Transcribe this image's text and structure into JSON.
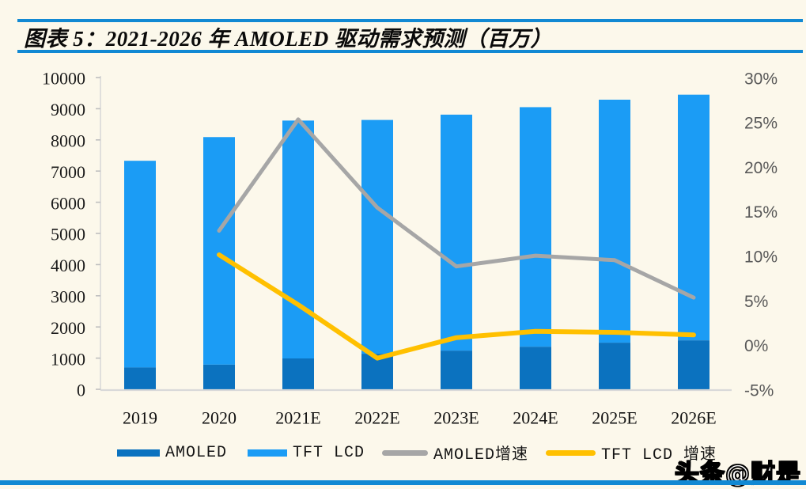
{
  "page": {
    "title": "图表 5：2021-2026 年 AMOLED 驱动需求预测（百万）",
    "watermark": "头条@财是",
    "accent_blue": "#1289D3",
    "background": "#FCF8EB"
  },
  "chart_data": {
    "type": "bar",
    "subtype": "stacked bars (left axis) + growth-rate lines (right axis)",
    "title": "图表 5：2021-2026 年 AMOLED 驱动需求预测（百万）",
    "categories": [
      "2019",
      "2020",
      "2021E",
      "2022E",
      "2023E",
      "2024E",
      "2025E",
      "2026E"
    ],
    "bar_series": [
      {
        "name": "AMOLED",
        "color": "#0B72BF",
        "axis": "left",
        "values": [
          700,
          790,
          990,
          1140,
          1240,
          1365,
          1495,
          1570
        ]
      },
      {
        "name": "TFT LCD",
        "color": "#1B9CF5",
        "axis": "left",
        "values": [
          6630,
          7300,
          7630,
          7500,
          7570,
          7685,
          7795,
          7880
        ]
      }
    ],
    "line_series": [
      {
        "name": "AMOLED增速",
        "color": "#A6A6A6",
        "axis": "right",
        "values": [
          null,
          12.8,
          25.3,
          15.4,
          8.8,
          10.0,
          9.5,
          5.3
        ]
      },
      {
        "name": "TFT LCD 增速",
        "color": "#FFC000",
        "axis": "right",
        "values": [
          null,
          10.1,
          4.5,
          -1.5,
          0.8,
          1.5,
          1.4,
          1.1
        ]
      }
    ],
    "left_axis": {
      "min": 0,
      "max": 10000,
      "tick_step": 1000,
      "ticks": [
        0,
        1000,
        2000,
        3000,
        4000,
        5000,
        6000,
        7000,
        8000,
        9000,
        10000
      ]
    },
    "right_axis": {
      "min": -5,
      "max": 30,
      "tick_step": 5,
      "ticks": [
        "-5%",
        "0%",
        "5%",
        "10%",
        "15%",
        "20%",
        "25%",
        "30%"
      ],
      "tick_values": [
        -5,
        0,
        5,
        10,
        15,
        20,
        25,
        30
      ]
    },
    "grid": false,
    "legend_position": "bottom"
  },
  "legend": {
    "items": [
      {
        "label": "AMOLED",
        "type": "bar",
        "color": "#0B72BF"
      },
      {
        "label": "TFT LCD",
        "type": "bar",
        "color": "#1B9CF5"
      },
      {
        "label": "AMOLED增速",
        "type": "line",
        "color": "#A6A6A6"
      },
      {
        "label": "TFT LCD 增速",
        "type": "line",
        "color": "#FFC000"
      }
    ]
  }
}
